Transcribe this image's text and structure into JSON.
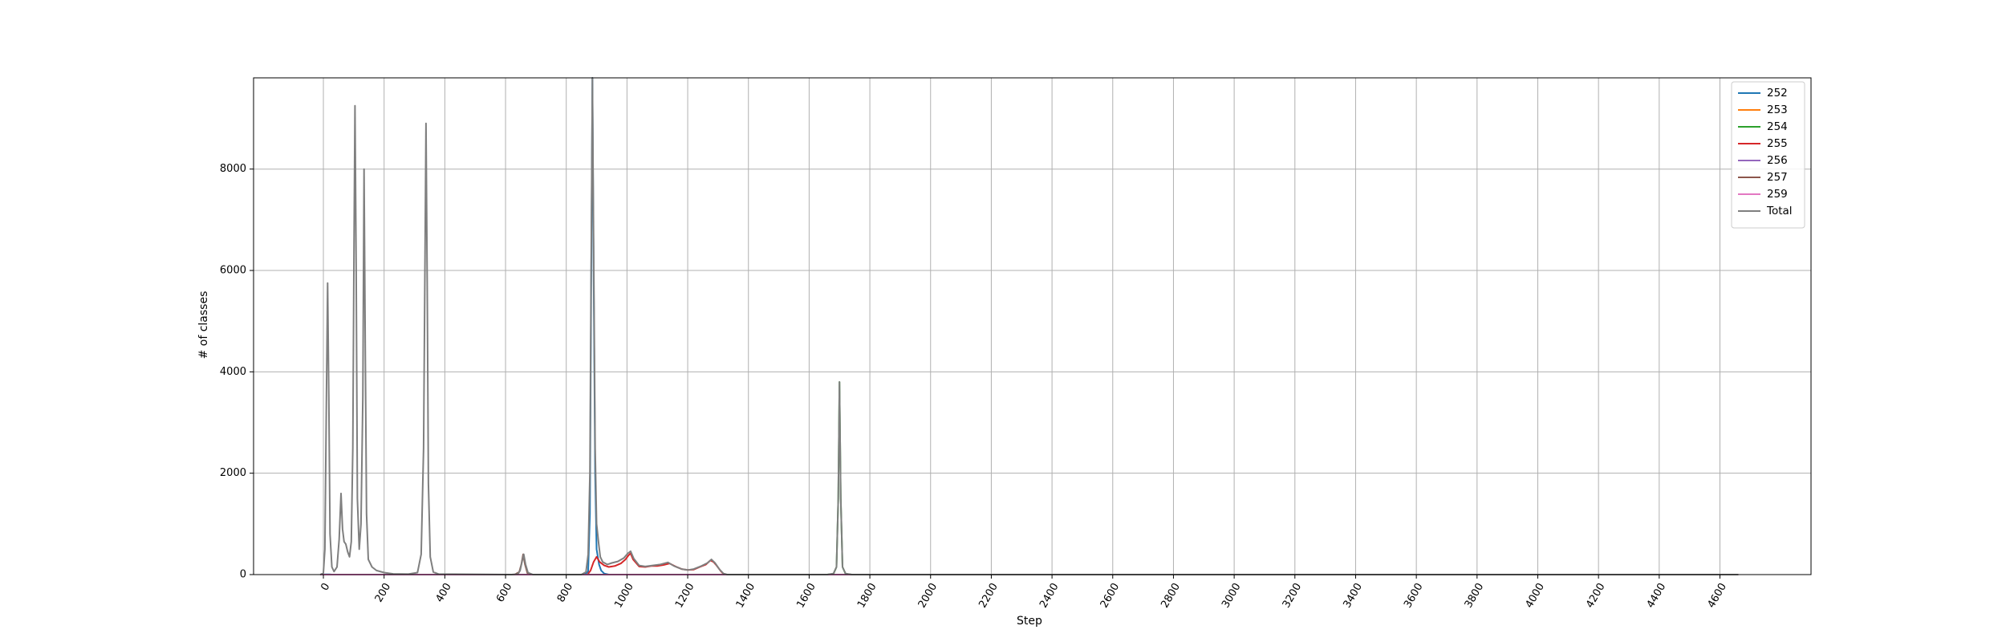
{
  "chart_data": {
    "type": "line",
    "xlabel": "Step",
    "ylabel": "# of classes",
    "xlim": [
      -230,
      4900
    ],
    "ylim": [
      0,
      9800
    ],
    "x_ticks": [
      0,
      200,
      400,
      600,
      800,
      1000,
      1200,
      1400,
      1600,
      1800,
      2000,
      2200,
      2400,
      2600,
      2800,
      3000,
      3200,
      3400,
      3600,
      3800,
      4000,
      4200,
      4400,
      4600
    ],
    "y_ticks": [
      0,
      2000,
      4000,
      6000,
      8000
    ],
    "x_tick_labels": [
      "0",
      "200",
      "400",
      "600",
      "800",
      "1000",
      "1200",
      "1400",
      "1600",
      "1800",
      "2000",
      "2200",
      "2400",
      "2600",
      "2800",
      "3000",
      "3200",
      "3400",
      "3600",
      "3800",
      "4000",
      "4200",
      "4400",
      "4600"
    ],
    "y_tick_labels": [
      "0",
      "2000",
      "4000",
      "6000",
      "8000"
    ],
    "grid": true,
    "legend_position": "top-right",
    "series": [
      {
        "name": "252",
        "color": "#1f77b4",
        "points": [
          [
            -10,
            0
          ],
          [
            8,
            3
          ],
          [
            14,
            5
          ],
          [
            20,
            3
          ],
          [
            28,
            0
          ],
          [
            860,
            0
          ],
          [
            872,
            60
          ],
          [
            878,
            1200
          ],
          [
            882,
            5500
          ],
          [
            886,
            9800
          ],
          [
            890,
            6000
          ],
          [
            895,
            2000
          ],
          [
            900,
            500
          ],
          [
            908,
            200
          ],
          [
            915,
            80
          ],
          [
            925,
            20
          ],
          [
            940,
            0
          ],
          [
            4660,
            0
          ]
        ]
      },
      {
        "name": "253",
        "color": "#ff7f0e",
        "points": [
          [
            -10,
            0
          ],
          [
            4660,
            0
          ]
        ]
      },
      {
        "name": "254",
        "color": "#2ca02c",
        "points": [
          [
            -10,
            0
          ],
          [
            1660,
            0
          ],
          [
            1680,
            15
          ],
          [
            1690,
            150
          ],
          [
            1696,
            1500
          ],
          [
            1700,
            3800
          ],
          [
            1704,
            1500
          ],
          [
            1710,
            150
          ],
          [
            1720,
            15
          ],
          [
            1740,
            0
          ],
          [
            4660,
            0
          ]
        ]
      },
      {
        "name": "255",
        "color": "#d62728",
        "points": [
          [
            -10,
            0
          ],
          [
            870,
            0
          ],
          [
            880,
            80
          ],
          [
            890,
            250
          ],
          [
            900,
            350
          ],
          [
            910,
            250
          ],
          [
            925,
            180
          ],
          [
            940,
            150
          ],
          [
            960,
            170
          ],
          [
            980,
            220
          ],
          [
            995,
            300
          ],
          [
            1005,
            380
          ],
          [
            1012,
            420
          ],
          [
            1020,
            300
          ],
          [
            1040,
            160
          ],
          [
            1060,
            150
          ],
          [
            1080,
            170
          ],
          [
            1100,
            170
          ],
          [
            1120,
            190
          ],
          [
            1140,
            220
          ],
          [
            1160,
            160
          ],
          [
            1180,
            110
          ],
          [
            1200,
            90
          ],
          [
            1220,
            100
          ],
          [
            1240,
            150
          ],
          [
            1260,
            200
          ],
          [
            1275,
            280
          ],
          [
            1285,
            250
          ],
          [
            1295,
            180
          ],
          [
            1310,
            60
          ],
          [
            1320,
            0
          ],
          [
            4660,
            0
          ]
        ]
      },
      {
        "name": "256",
        "color": "#9467bd",
        "points": [
          [
            -10,
            0
          ],
          [
            4660,
            0
          ]
        ]
      },
      {
        "name": "257",
        "color": "#8c564b",
        "points": [
          [
            -10,
            0
          ],
          [
            600,
            0
          ],
          [
            630,
            0
          ],
          [
            645,
            50
          ],
          [
            652,
            200
          ],
          [
            658,
            400
          ],
          [
            664,
            200
          ],
          [
            672,
            30
          ],
          [
            685,
            0
          ],
          [
            4660,
            0
          ]
        ]
      },
      {
        "name": "259",
        "color": "#e377c2",
        "points": [
          [
            -10,
            0
          ],
          [
            4660,
            0
          ]
        ]
      },
      {
        "name": "Total",
        "color": "#7f7f7f",
        "points": [
          [
            -10,
            0
          ],
          [
            0,
            30
          ],
          [
            5,
            500
          ],
          [
            10,
            3500
          ],
          [
            14,
            5750
          ],
          [
            18,
            3500
          ],
          [
            22,
            800
          ],
          [
            28,
            150
          ],
          [
            35,
            60
          ],
          [
            45,
            150
          ],
          [
            52,
            700
          ],
          [
            58,
            1600
          ],
          [
            63,
            900
          ],
          [
            68,
            650
          ],
          [
            74,
            600
          ],
          [
            80,
            450
          ],
          [
            86,
            350
          ],
          [
            92,
            650
          ],
          [
            97,
            2500
          ],
          [
            101,
            6500
          ],
          [
            104,
            9250
          ],
          [
            108,
            6000
          ],
          [
            112,
            1500
          ],
          [
            118,
            500
          ],
          [
            124,
            1000
          ],
          [
            130,
            3500
          ],
          [
            134,
            8000
          ],
          [
            138,
            4500
          ],
          [
            142,
            1200
          ],
          [
            148,
            300
          ],
          [
            160,
            150
          ],
          [
            175,
            80
          ],
          [
            200,
            40
          ],
          [
            230,
            15
          ],
          [
            280,
            10
          ],
          [
            310,
            40
          ],
          [
            322,
            400
          ],
          [
            330,
            2500
          ],
          [
            335,
            6500
          ],
          [
            338,
            8900
          ],
          [
            342,
            5800
          ],
          [
            346,
            1800
          ],
          [
            352,
            350
          ],
          [
            362,
            50
          ],
          [
            380,
            10
          ],
          [
            620,
            0
          ],
          [
            640,
            10
          ],
          [
            648,
            80
          ],
          [
            654,
            250
          ],
          [
            660,
            400
          ],
          [
            666,
            200
          ],
          [
            674,
            40
          ],
          [
            690,
            0
          ],
          [
            850,
            0
          ],
          [
            865,
            50
          ],
          [
            872,
            400
          ],
          [
            878,
            2000
          ],
          [
            882,
            6000
          ],
          [
            886,
            9800
          ],
          [
            890,
            6500
          ],
          [
            895,
            2500
          ],
          [
            900,
            1000
          ],
          [
            907,
            600
          ],
          [
            912,
            350
          ],
          [
            920,
            250
          ],
          [
            935,
            200
          ],
          [
            950,
            230
          ],
          [
            970,
            260
          ],
          [
            990,
            330
          ],
          [
            1003,
            420
          ],
          [
            1012,
            460
          ],
          [
            1022,
            320
          ],
          [
            1040,
            180
          ],
          [
            1060,
            160
          ],
          [
            1085,
            180
          ],
          [
            1110,
            200
          ],
          [
            1135,
            240
          ],
          [
            1155,
            170
          ],
          [
            1180,
            110
          ],
          [
            1200,
            90
          ],
          [
            1220,
            110
          ],
          [
            1245,
            170
          ],
          [
            1265,
            230
          ],
          [
            1278,
            300
          ],
          [
            1290,
            230
          ],
          [
            1305,
            100
          ],
          [
            1318,
            20
          ],
          [
            1330,
            0
          ],
          [
            1660,
            0
          ],
          [
            1680,
            20
          ],
          [
            1690,
            150
          ],
          [
            1696,
            1500
          ],
          [
            1700,
            3800
          ],
          [
            1704,
            1500
          ],
          [
            1710,
            150
          ],
          [
            1720,
            20
          ],
          [
            1740,
            0
          ],
          [
            4660,
            0
          ]
        ]
      }
    ]
  }
}
